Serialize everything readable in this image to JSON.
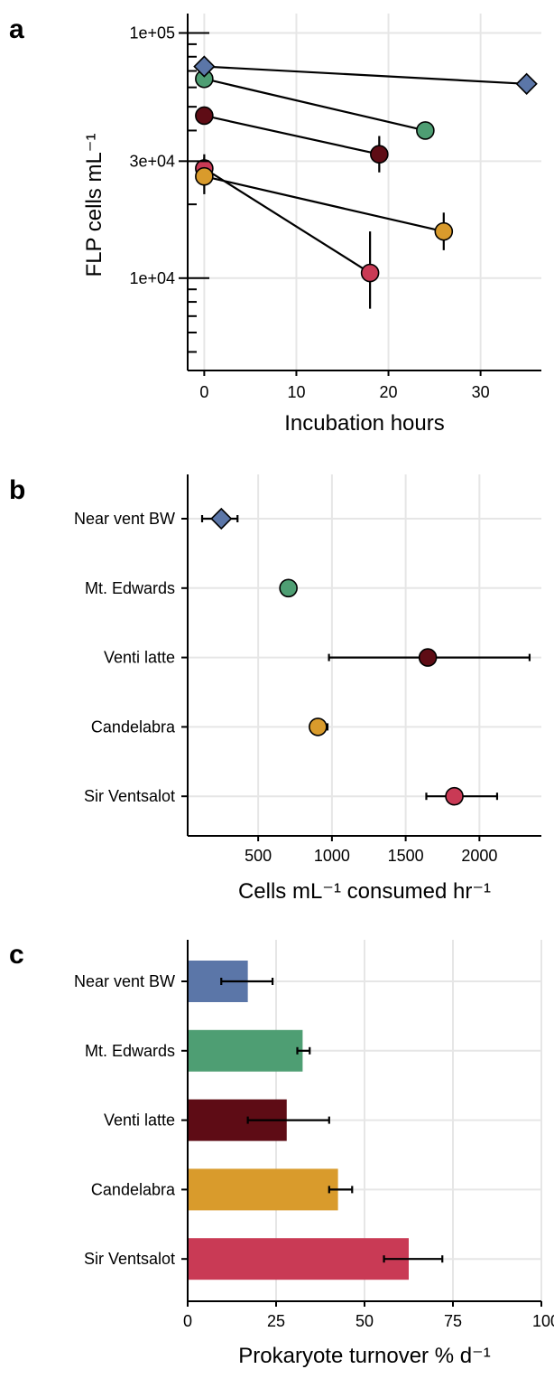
{
  "panel_letters": [
    "a",
    "b",
    "c"
  ],
  "colors": {
    "Near vent BW": "#5B76A8",
    "Mt. Edwards": "#4E9E73",
    "Venti latte": "#5E0C15",
    "Candelabra": "#D99B2C",
    "Sir Ventsalot": "#C93A55"
  },
  "chart_data": [
    {
      "type": "line",
      "panel": "a",
      "xlabel": "Incubation hours",
      "ylabel": "FLP cells  mL⁻¹",
      "y_scale": "log",
      "xlim": [
        -1.8,
        36.6
      ],
      "ylim": [
        4200,
        120000
      ],
      "x_ticks": [
        0,
        10,
        20,
        30
      ],
      "x_tick_labels": [
        "0",
        "10",
        "20",
        "30"
      ],
      "y_ticks": [
        10000,
        30000,
        100000
      ],
      "y_tick_labels": [
        "1e+04",
        "3e+04",
        "1e+05"
      ],
      "grid": true,
      "series": [
        {
          "name": "Near vent BW",
          "marker": "diamond",
          "points": [
            {
              "x": 0,
              "y": 73000
            },
            {
              "x": 35,
              "y": 62000
            }
          ]
        },
        {
          "name": "Mt. Edwards",
          "marker": "circle",
          "points": [
            {
              "x": 0,
              "y": 65000
            },
            {
              "x": 24,
              "y": 40000,
              "err": [
                37500,
                43000
              ]
            }
          ]
        },
        {
          "name": "Venti latte",
          "marker": "circle",
          "points": [
            {
              "x": 0,
              "y": 46000
            },
            {
              "x": 19,
              "y": 32000,
              "err": [
                27000,
                38000
              ]
            }
          ]
        },
        {
          "name": "Candelabra",
          "marker": "circle",
          "points": [
            {
              "x": 0,
              "y": 26000,
              "err": [
                22000,
                31000
              ]
            },
            {
              "x": 26,
              "y": 15500,
              "err": [
                13000,
                18500
              ]
            }
          ]
        },
        {
          "name": "Sir Ventsalot",
          "marker": "circle",
          "points": [
            {
              "x": 0,
              "y": 28000,
              "err": [
                26000,
                32000
              ]
            },
            {
              "x": 18,
              "y": 10500,
              "err": [
                7500,
                15500
              ]
            }
          ]
        }
      ]
    },
    {
      "type": "scatter",
      "panel": "b",
      "xlabel": "Cells  mL⁻¹ consumed hr⁻¹",
      "xlim": [
        22,
        2420
      ],
      "x_ticks": [
        500,
        1000,
        1500,
        2000
      ],
      "x_tick_labels": [
        "500",
        "1000",
        "1500",
        "2000"
      ],
      "categories": [
        "Near vent BW",
        "Mt. Edwards",
        "Venti latte",
        "Candelabra",
        "Sir Ventsalot"
      ],
      "grid": true,
      "points": [
        {
          "category": "Near vent BW",
          "value": 250,
          "err": [
            120,
            360
          ],
          "marker": "diamond"
        },
        {
          "category": "Mt. Edwards",
          "value": 705,
          "err": null,
          "marker": "circle"
        },
        {
          "category": "Venti latte",
          "value": 1650,
          "err": [
            980,
            2340
          ],
          "marker": "circle"
        },
        {
          "category": "Candelabra",
          "value": 905,
          "err": [
            860,
            970
          ],
          "marker": "circle"
        },
        {
          "category": "Sir Ventsalot",
          "value": 1830,
          "err": [
            1640,
            2120
          ],
          "marker": "circle"
        }
      ]
    },
    {
      "type": "bar",
      "panel": "c",
      "orientation": "horizontal",
      "xlabel": "Prokaryote turnover % d⁻¹",
      "xlim": [
        0,
        100
      ],
      "x_ticks": [
        0,
        25,
        50,
        75,
        100
      ],
      "x_tick_labels": [
        "0",
        "25",
        "50",
        "75",
        "100"
      ],
      "categories": [
        "Near vent BW",
        "Mt. Edwards",
        "Venti latte",
        "Candelabra",
        "Sir Ventsalot"
      ],
      "grid": true,
      "values": [
        17,
        32.5,
        28,
        42.5,
        62.5
      ],
      "errors": [
        [
          9.5,
          24
        ],
        [
          31,
          34.5
        ],
        [
          17,
          40
        ],
        [
          40,
          46.5
        ],
        [
          55.5,
          72
        ]
      ]
    }
  ]
}
